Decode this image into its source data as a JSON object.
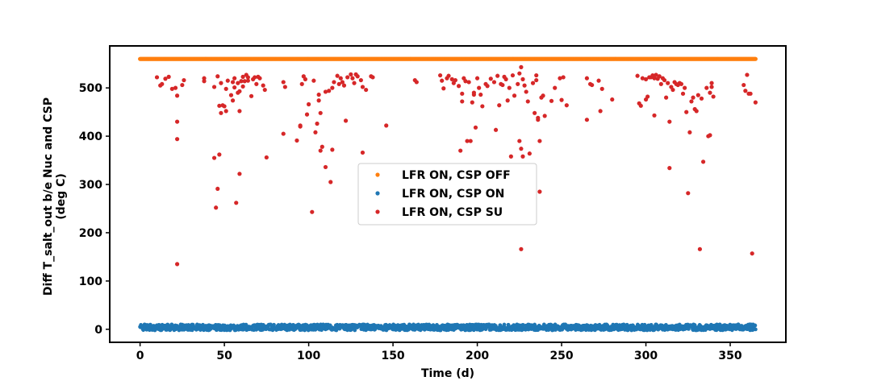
{
  "chart_data": {
    "type": "scatter",
    "xlabel": "Time (d)",
    "ylabel": [
      "Diff T_salt_out b/e Nuc and CSP",
      "(deg C)"
    ],
    "xlim": [
      -18,
      383
    ],
    "ylim": [
      -27,
      587
    ],
    "x_ticks": [
      0,
      50,
      100,
      150,
      200,
      250,
      300,
      350
    ],
    "y_ticks": [
      0,
      100,
      200,
      300,
      400,
      500
    ],
    "legend_position": "center",
    "series": [
      {
        "name": "LFR ON, CSP OFF",
        "color": "#ff7f0e",
        "pattern": "constant",
        "x_range": [
          0,
          365
        ],
        "y_value": 560
      },
      {
        "name": "LFR ON, CSP ON",
        "color": "#1f77b4",
        "pattern": "noise-band",
        "x_range": [
          0,
          365
        ],
        "y_range": [
          -2,
          10
        ]
      },
      {
        "name": "LFR ON, CSP SU",
        "color": "#d62728",
        "points": [
          [
            10,
            522
          ],
          [
            12,
            505
          ],
          [
            13,
            508
          ],
          [
            15,
            519
          ],
          [
            17,
            523
          ],
          [
            19,
            498
          ],
          [
            21,
            500
          ],
          [
            22,
            484
          ],
          [
            22,
            430
          ],
          [
            22,
            394
          ],
          [
            22,
            135
          ],
          [
            25,
            506
          ],
          [
            26,
            516
          ],
          [
            38,
            520
          ],
          [
            38,
            514
          ],
          [
            44,
            502
          ],
          [
            44,
            355
          ],
          [
            45,
            252
          ],
          [
            46,
            524
          ],
          [
            46,
            291
          ],
          [
            47,
            362
          ],
          [
            47,
            463
          ],
          [
            48,
            510
          ],
          [
            48,
            448
          ],
          [
            49,
            464
          ],
          [
            50,
            462
          ],
          [
            51,
            452
          ],
          [
            51,
            498
          ],
          [
            52,
            515
          ],
          [
            54,
            485
          ],
          [
            55,
            474
          ],
          [
            55,
            512
          ],
          [
            56,
            520
          ],
          [
            56,
            501
          ],
          [
            57,
            262
          ],
          [
            58,
            510
          ],
          [
            58,
            490
          ],
          [
            59,
            493
          ],
          [
            59,
            452
          ],
          [
            59,
            322
          ],
          [
            60,
            514
          ],
          [
            61,
            503
          ],
          [
            61,
            523
          ],
          [
            62,
            514
          ],
          [
            63,
            527
          ],
          [
            64,
            522
          ],
          [
            64,
            515
          ],
          [
            66,
            483
          ],
          [
            67,
            518
          ],
          [
            68,
            522
          ],
          [
            69,
            508
          ],
          [
            70,
            523
          ],
          [
            71,
            520
          ],
          [
            73,
            505
          ],
          [
            74,
            496
          ],
          [
            75,
            356
          ],
          [
            85,
            512
          ],
          [
            85,
            405
          ],
          [
            86,
            502
          ],
          [
            93,
            391
          ],
          [
            95,
            420
          ],
          [
            95,
            422
          ],
          [
            96,
            508
          ],
          [
            97,
            524
          ],
          [
            98,
            518
          ],
          [
            99,
            445
          ],
          [
            100,
            466
          ],
          [
            102,
            243
          ],
          [
            103,
            515
          ],
          [
            104,
            408
          ],
          [
            105,
            426
          ],
          [
            106,
            486
          ],
          [
            106,
            474
          ],
          [
            107,
            370
          ],
          [
            107,
            448
          ],
          [
            108,
            378
          ],
          [
            110,
            336
          ],
          [
            110,
            492
          ],
          [
            112,
            494
          ],
          [
            113,
            305
          ],
          [
            114,
            500
          ],
          [
            114,
            372
          ],
          [
            115,
            512
          ],
          [
            117,
            525
          ],
          [
            118,
            508
          ],
          [
            119,
            520
          ],
          [
            120,
            512
          ],
          [
            121,
            505
          ],
          [
            122,
            432
          ],
          [
            123,
            522
          ],
          [
            125,
            528
          ],
          [
            126,
            520
          ],
          [
            127,
            510
          ],
          [
            128,
            528
          ],
          [
            129,
            524
          ],
          [
            131,
            516
          ],
          [
            132,
            502
          ],
          [
            132,
            366
          ],
          [
            134,
            496
          ],
          [
            137,
            524
          ],
          [
            138,
            522
          ],
          [
            146,
            422
          ],
          [
            163,
            516
          ],
          [
            164,
            512
          ],
          [
            178,
            526
          ],
          [
            179,
            515
          ],
          [
            180,
            499
          ],
          [
            182,
            520
          ],
          [
            183,
            525
          ],
          [
            185,
            518
          ],
          [
            186,
            510
          ],
          [
            187,
            516
          ],
          [
            189,
            504
          ],
          [
            190,
            370
          ],
          [
            191,
            488
          ],
          [
            191,
            472
          ],
          [
            192,
            520
          ],
          [
            193,
            514
          ],
          [
            194,
            390
          ],
          [
            195,
            512
          ],
          [
            196,
            390
          ],
          [
            197,
            470
          ],
          [
            198,
            490
          ],
          [
            198,
            486
          ],
          [
            199,
            418
          ],
          [
            200,
            520
          ],
          [
            201,
            500
          ],
          [
            202,
            486
          ],
          [
            203,
            462
          ],
          [
            205,
            508
          ],
          [
            206,
            504
          ],
          [
            208,
            519
          ],
          [
            210,
            512
          ],
          [
            211,
            413
          ],
          [
            212,
            525
          ],
          [
            213,
            464
          ],
          [
            214,
            508
          ],
          [
            215,
            506
          ],
          [
            216,
            523
          ],
          [
            217,
            518
          ],
          [
            218,
            474
          ],
          [
            219,
            500
          ],
          [
            220,
            358
          ],
          [
            221,
            526
          ],
          [
            222,
            484
          ],
          [
            224,
            508
          ],
          [
            225,
            390
          ],
          [
            225,
            530
          ],
          [
            226,
            543
          ],
          [
            226,
            374
          ],
          [
            226,
            166
          ],
          [
            227,
            518
          ],
          [
            227,
            358
          ],
          [
            228,
            505
          ],
          [
            229,
            492
          ],
          [
            230,
            472
          ],
          [
            231,
            364
          ],
          [
            233,
            510
          ],
          [
            234,
            448
          ],
          [
            235,
            516
          ],
          [
            235,
            526
          ],
          [
            236,
            438
          ],
          [
            236,
            434
          ],
          [
            237,
            390
          ],
          [
            237,
            285
          ],
          [
            238,
            480
          ],
          [
            239,
            484
          ],
          [
            240,
            442
          ],
          [
            244,
            473
          ],
          [
            246,
            500
          ],
          [
            249,
            520
          ],
          [
            250,
            475
          ],
          [
            251,
            522
          ],
          [
            253,
            464
          ],
          [
            265,
            520
          ],
          [
            265,
            434
          ],
          [
            267,
            508
          ],
          [
            268,
            506
          ],
          [
            272,
            515
          ],
          [
            273,
            452
          ],
          [
            274,
            498
          ],
          [
            280,
            476
          ],
          [
            295,
            525
          ],
          [
            296,
            468
          ],
          [
            297,
            463
          ],
          [
            298,
            520
          ],
          [
            300,
            518
          ],
          [
            300,
            476
          ],
          [
            301,
            482
          ],
          [
            302,
            522
          ],
          [
            303,
            522
          ],
          [
            304,
            526
          ],
          [
            305,
            443
          ],
          [
            305,
            520
          ],
          [
            306,
            527
          ],
          [
            307,
            519
          ],
          [
            308,
            524
          ],
          [
            309,
            508
          ],
          [
            310,
            520
          ],
          [
            311,
            516
          ],
          [
            312,
            480
          ],
          [
            313,
            510
          ],
          [
            314,
            430
          ],
          [
            314,
            334
          ],
          [
            315,
            502
          ],
          [
            316,
            496
          ],
          [
            317,
            512
          ],
          [
            318,
            508
          ],
          [
            319,
            506
          ],
          [
            320,
            510
          ],
          [
            321,
            508
          ],
          [
            322,
            488
          ],
          [
            323,
            500
          ],
          [
            324,
            450
          ],
          [
            325,
            282
          ],
          [
            326,
            408
          ],
          [
            327,
            472
          ],
          [
            328,
            480
          ],
          [
            329,
            456
          ],
          [
            330,
            452
          ],
          [
            331,
            485
          ],
          [
            332,
            166
          ],
          [
            333,
            478
          ],
          [
            334,
            347
          ],
          [
            336,
            500
          ],
          [
            337,
            400
          ],
          [
            338,
            490
          ],
          [
            338,
            402
          ],
          [
            339,
            510
          ],
          [
            339,
            502
          ],
          [
            340,
            482
          ],
          [
            358,
            506
          ],
          [
            359,
            494
          ],
          [
            360,
            527
          ],
          [
            361,
            488
          ],
          [
            362,
            488
          ],
          [
            363,
            157
          ],
          [
            365,
            470
          ]
        ]
      }
    ]
  }
}
